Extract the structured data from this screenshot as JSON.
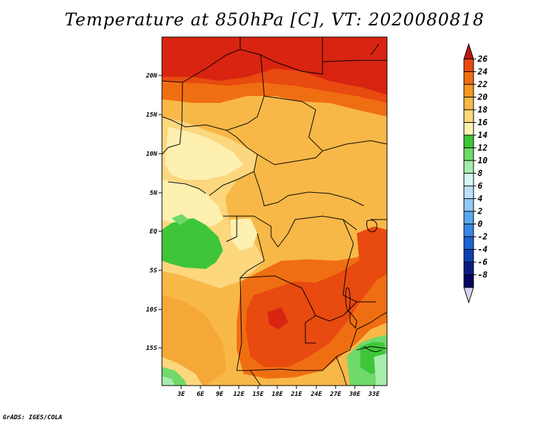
{
  "title": "Temperature at 850hPa [C], VT: 2020080818",
  "credit": "GrADS: IGES/COLA",
  "lat_ticks": [
    "20N",
    "15N",
    "10N",
    "5N",
    "EQ",
    "5S",
    "10S",
    "15S"
  ],
  "lon_ticks": [
    "3E",
    "6E",
    "9E",
    "12E",
    "15E",
    "18E",
    "21E",
    "24E",
    "27E",
    "30E",
    "33E"
  ],
  "colorbar": {
    "labels": [
      "26",
      "24",
      "22",
      "20",
      "18",
      "16",
      "14",
      "12",
      "10",
      "8",
      "6",
      "4",
      "2",
      "0",
      "-2",
      "-4",
      "-6",
      "-8"
    ],
    "colors": [
      "#d82410",
      "#e84a10",
      "#f06e12",
      "#f59820",
      "#f8b848",
      "#fcd77e",
      "#fdf0b0",
      "#3fc53a",
      "#6fd96a",
      "#a6ecad",
      "#d6f7f7",
      "#bde0fb",
      "#92c8f5",
      "#5aa8ee",
      "#3a86e5",
      "#1e62d3",
      "#0e3fae",
      "#0a1d7f",
      "#050560"
    ],
    "top_arrow_color": "#c0180c",
    "bottom_arrow_color": "#d7d3f2"
  }
}
